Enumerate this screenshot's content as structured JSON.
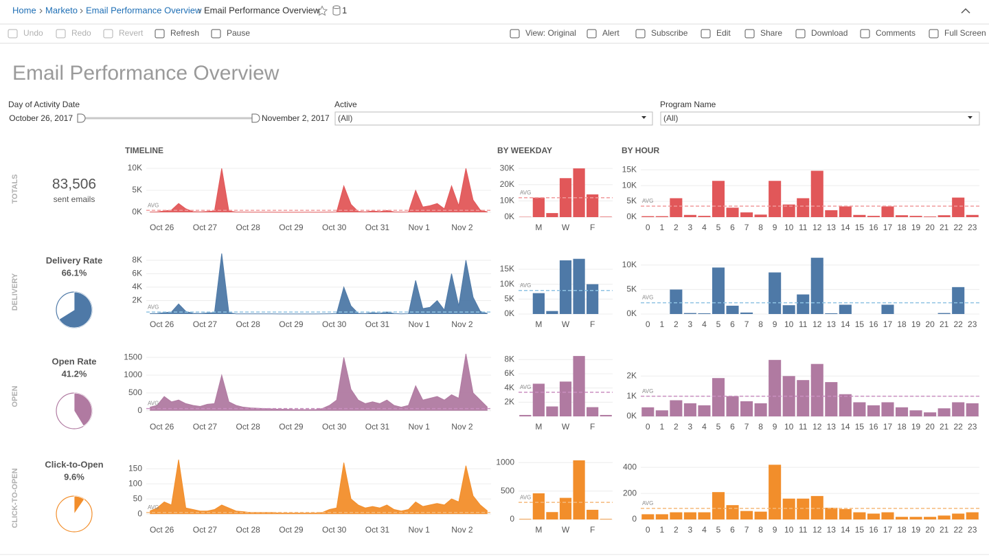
{
  "breadcrumb": [
    "Home",
    "Marketo",
    "Email Performance Overview",
    "Email Performance Overview"
  ],
  "data_sources": 1,
  "toolbar": [
    {
      "label": "Undo",
      "enabled": false
    },
    {
      "label": "Redo",
      "enabled": false
    },
    {
      "label": "Revert",
      "enabled": false
    },
    {
      "label": "Refresh",
      "enabled": true
    },
    {
      "label": "Pause",
      "enabled": true
    },
    {
      "label": "View: Original",
      "enabled": true
    },
    {
      "label": "Alert",
      "enabled": true
    },
    {
      "label": "Subscribe",
      "enabled": true
    },
    {
      "label": "Edit",
      "enabled": true
    },
    {
      "label": "Share",
      "enabled": true
    },
    {
      "label": "Download",
      "enabled": true
    },
    {
      "label": "Comments",
      "enabled": true
    },
    {
      "label": "Full Screen",
      "enabled": true
    }
  ],
  "title": "Email Performance Overview",
  "filters": {
    "date": {
      "label": "Day of Activity Date",
      "start": "October 26, 2017",
      "end": "November 2, 2017"
    },
    "active": {
      "label": "Active",
      "value": "(All)"
    },
    "program": {
      "label": "Program Name",
      "value": "(All)"
    }
  },
  "sections": [
    "TIMELINE",
    "BY WEEKDAY",
    "BY HOUR"
  ],
  "rows": [
    {
      "name": "TOTALS",
      "kpi": "83,506",
      "caption": "sent emails"
    },
    {
      "name": "DELIVERY",
      "metric": "Delivery Rate",
      "value": 66.1,
      "value_label": "66.1%"
    },
    {
      "name": "OPEN",
      "metric": "Open Rate",
      "value": 41.2,
      "value_label": "41.2%"
    },
    {
      "name": "CLICK-TO-OPEN",
      "metric": "Click-to-Open",
      "value": 9.6,
      "value_label": "9.6%"
    }
  ],
  "chart_data": [
    {
      "type": "area",
      "color": "#e15759",
      "grid": true,
      "categories": [
        "Oct 26",
        null,
        null,
        null,
        null,
        null,
        "Oct 27",
        null,
        null,
        null,
        null,
        null,
        "Oct 28",
        null,
        null,
        null,
        null,
        null,
        "Oct 29",
        null,
        null,
        null,
        null,
        null,
        "Oct 30",
        null,
        null,
        null,
        null,
        null,
        "Oct 31",
        null,
        null,
        null,
        null,
        null,
        "Nov 1",
        null,
        null,
        null,
        null,
        null,
        "Nov 2",
        null,
        null,
        null,
        null,
        null
      ],
      "values": [
        80,
        100,
        300,
        500,
        2000,
        800,
        150,
        100,
        200,
        300,
        10000,
        300,
        60,
        50,
        40,
        30,
        40,
        30,
        20,
        20,
        20,
        20,
        30,
        20,
        40,
        60,
        80,
        6000,
        1800,
        200,
        100,
        300,
        150,
        400,
        100,
        50,
        80,
        5000,
        1200,
        1500,
        2000,
        800,
        6000,
        1500,
        10000,
        2800,
        500,
        100
      ],
      "ylim": [
        -1100,
        11100
      ],
      "yticks": [
        {
          "value": 0,
          "label": "0K"
        },
        {
          "value": 5000,
          "label": "5K"
        },
        {
          "value": 10000,
          "label": "10K"
        }
      ],
      "reference_line": {
        "label": "AVG",
        "value": 435,
        "color": "#f09a9b"
      }
    },
    {
      "type": "bar",
      "color": "#e15759",
      "grid": true,
      "categories": [
        null,
        "M",
        null,
        "W",
        null,
        "F",
        null
      ],
      "values": [
        200,
        12000,
        2500,
        24000,
        30000,
        14000,
        300
      ],
      "ylim": [
        0,
        33000
      ],
      "yticks": [
        {
          "value": 0,
          "label": "0K"
        },
        {
          "value": 10000,
          "label": "10K"
        },
        {
          "value": 20000,
          "label": "20K"
        },
        {
          "value": 30000,
          "label": "30K"
        }
      ],
      "reference_line": {
        "label": "AVG",
        "value": 11929,
        "color": "#f09a9b"
      }
    },
    {
      "type": "bar",
      "color": "#e15759",
      "grid": true,
      "categories": [
        "0",
        "1",
        "2",
        "3",
        "4",
        "5",
        "6",
        "7",
        "8",
        "9",
        "10",
        "11",
        "12",
        "13",
        "14",
        "15",
        "16",
        "17",
        "18",
        "19",
        "20",
        "21",
        "22",
        "23"
      ],
      "values": [
        300,
        300,
        6000,
        700,
        400,
        11500,
        3000,
        1500,
        800,
        11500,
        4000,
        6000,
        14700,
        2200,
        3400,
        700,
        400,
        3400,
        600,
        400,
        200,
        600,
        6200,
        700
      ],
      "ylim": [
        0,
        17000
      ],
      "yticks": [
        {
          "value": 0,
          "label": "0K"
        },
        {
          "value": 5000,
          "label": "5K"
        },
        {
          "value": 10000,
          "label": "10K"
        },
        {
          "value": 15000,
          "label": "15K"
        }
      ],
      "reference_line": {
        "label": "AVG",
        "value": 3480,
        "color": "#f09a9b"
      }
    },
    {
      "type": "area",
      "color": "#4e79a7",
      "grid": true,
      "categories": [
        "Oct 26",
        null,
        null,
        null,
        null,
        null,
        "Oct 27",
        null,
        null,
        null,
        null,
        null,
        "Oct 28",
        null,
        null,
        null,
        null,
        null,
        "Oct 29",
        null,
        null,
        null,
        null,
        null,
        "Oct 30",
        null,
        null,
        null,
        null,
        null,
        "Oct 31",
        null,
        null,
        null,
        null,
        null,
        "Nov 1",
        null,
        null,
        null,
        null,
        null,
        "Nov 2",
        null,
        null,
        null,
        null,
        null
      ],
      "values": [
        50,
        80,
        200,
        300,
        1500,
        400,
        100,
        80,
        150,
        200,
        9000,
        200,
        30,
        20,
        20,
        20,
        20,
        20,
        10,
        10,
        10,
        10,
        10,
        10,
        20,
        40,
        60,
        4000,
        1200,
        100,
        60,
        200,
        100,
        300,
        60,
        30,
        50,
        5000,
        800,
        1000,
        2000,
        600,
        6000,
        1200,
        8000,
        2500,
        400,
        80
      ],
      "ylim": [
        0,
        9100
      ],
      "yticks": [
        {
          "value": 2000,
          "label": "2K"
        },
        {
          "value": 4000,
          "label": "4K"
        },
        {
          "value": 6000,
          "label": "6K"
        },
        {
          "value": 8000,
          "label": "8K"
        }
      ],
      "reference_line": {
        "label": "AVG",
        "value": 290,
        "color": "#8fc3e3"
      }
    },
    {
      "type": "bar",
      "color": "#4e79a7",
      "grid": true,
      "categories": [
        null,
        "M",
        null,
        "W",
        null,
        "F",
        null
      ],
      "values": [
        0,
        7000,
        1000,
        18000,
        18500,
        10000,
        0
      ],
      "ylim": [
        0,
        20500
      ],
      "yticks": [
        {
          "value": 0,
          "label": "0K"
        },
        {
          "value": 5000,
          "label": "5K"
        },
        {
          "value": 10000,
          "label": "10K"
        },
        {
          "value": 15000,
          "label": "15K"
        }
      ],
      "reference_line": {
        "label": "AVG",
        "value": 7900,
        "color": "#8fc3e3"
      }
    },
    {
      "type": "bar",
      "color": "#4e79a7",
      "grid": true,
      "categories": [
        "0",
        "1",
        "2",
        "3",
        "4",
        "5",
        "6",
        "7",
        "8",
        "9",
        "10",
        "11",
        "12",
        "13",
        "14",
        "15",
        "16",
        "17",
        "18",
        "19",
        "20",
        "21",
        "22",
        "23"
      ],
      "values": [
        0,
        0,
        5000,
        200,
        150,
        9500,
        1700,
        300,
        0,
        8500,
        1800,
        4000,
        11500,
        150,
        1900,
        0,
        0,
        1900,
        0,
        0,
        0,
        200,
        5500,
        0
      ],
      "ylim": [
        0,
        12500
      ],
      "yticks": [
        {
          "value": 0,
          "label": "0K"
        },
        {
          "value": 5000,
          "label": "5K"
        },
        {
          "value": 10000,
          "label": "10K"
        }
      ],
      "reference_line": {
        "label": "AVG",
        "value": 2300,
        "color": "#8fc3e3"
      }
    },
    {
      "type": "area",
      "color": "#b07aa1",
      "grid": true,
      "categories": [
        "Oct 26",
        null,
        null,
        null,
        null,
        null,
        "Oct 27",
        null,
        null,
        null,
        null,
        null,
        "Oct 28",
        null,
        null,
        null,
        null,
        null,
        "Oct 29",
        null,
        null,
        null,
        null,
        null,
        "Oct 30",
        null,
        null,
        null,
        null,
        null,
        "Oct 31",
        null,
        null,
        null,
        null,
        null,
        "Nov 1",
        null,
        null,
        null,
        null,
        null,
        "Nov 2",
        null,
        null,
        null,
        null,
        null
      ],
      "values": [
        100,
        150,
        400,
        250,
        300,
        200,
        150,
        120,
        180,
        200,
        1000,
        250,
        150,
        100,
        80,
        70,
        60,
        50,
        40,
        40,
        30,
        30,
        30,
        30,
        60,
        150,
        300,
        1500,
        600,
        300,
        200,
        250,
        200,
        300,
        150,
        100,
        150,
        700,
        300,
        350,
        400,
        300,
        450,
        350,
        1600,
        500,
        300,
        100
      ],
      "ylim": [
        -160,
        1600
      ],
      "yticks": [
        0,
        500,
        1000,
        1500
      ],
      "reference_line": {
        "label": "AVG",
        "value": 60,
        "color": "#c98fc0"
      }
    },
    {
      "type": "bar",
      "color": "#b07aa1",
      "grid": true,
      "categories": [
        null,
        "M",
        null,
        "W",
        null,
        "F",
        null
      ],
      "values": [
        200,
        4600,
        1400,
        4900,
        8500,
        1300,
        200
      ],
      "ylim": [
        0,
        8800
      ],
      "yticks": [
        {
          "value": 2000,
          "label": "2K"
        },
        {
          "value": 4000,
          "label": "4K"
        },
        {
          "value": 6000,
          "label": "6K"
        },
        {
          "value": 8000,
          "label": "8K"
        }
      ],
      "reference_line": {
        "label": "AVG",
        "value": 3400,
        "color": "#c98fc0"
      }
    },
    {
      "type": "bar",
      "color": "#b07aa1",
      "grid": true,
      "categories": [
        "0",
        "1",
        "2",
        "3",
        "4",
        "5",
        "6",
        "7",
        "8",
        "9",
        "10",
        "11",
        "12",
        "13",
        "14",
        "15",
        "16",
        "17",
        "18",
        "19",
        "20",
        "21",
        "22",
        "23"
      ],
      "values": [
        450,
        300,
        800,
        650,
        550,
        1900,
        1000,
        750,
        650,
        2800,
        2000,
        1800,
        2600,
        1700,
        1100,
        700,
        550,
        700,
        450,
        300,
        200,
        400,
        700,
        650
      ],
      "ylim": [
        0,
        3100
      ],
      "yticks": [
        {
          "value": 0,
          "label": "0K"
        },
        {
          "value": 1000,
          "label": "1K"
        },
        {
          "value": 2000,
          "label": "2K"
        }
      ],
      "reference_line": {
        "label": "AVG",
        "value": 1000,
        "color": "#c98fc0"
      }
    },
    {
      "type": "area",
      "color": "#f28e2b",
      "grid": true,
      "categories": [
        "Oct 26",
        null,
        null,
        null,
        null,
        null,
        "Oct 27",
        null,
        null,
        null,
        null,
        null,
        "Oct 28",
        null,
        null,
        null,
        null,
        null,
        "Oct 29",
        null,
        null,
        null,
        null,
        null,
        "Oct 30",
        null,
        null,
        null,
        null,
        null,
        "Oct 31",
        null,
        null,
        null,
        null,
        null,
        "Nov 1",
        null,
        null,
        null,
        null,
        null,
        "Nov 2",
        null,
        null,
        null,
        null,
        null
      ],
      "values": [
        10,
        20,
        40,
        30,
        180,
        20,
        15,
        10,
        10,
        15,
        30,
        20,
        10,
        8,
        5,
        5,
        5,
        5,
        3,
        3,
        3,
        3,
        3,
        3,
        5,
        15,
        20,
        170,
        50,
        30,
        20,
        25,
        20,
        30,
        15,
        10,
        15,
        40,
        25,
        30,
        35,
        30,
        50,
        40,
        160,
        60,
        30,
        10
      ],
      "ylim": [
        -18,
        189
      ],
      "yticks": [
        0,
        50,
        100,
        150
      ],
      "reference_line": {
        "label": "AVG",
        "value": 5,
        "color": "#f5b97a"
      }
    },
    {
      "type": "bar",
      "color": "#f28e2b",
      "grid": true,
      "categories": [
        null,
        "M",
        null,
        "W",
        null,
        "F",
        null
      ],
      "values": [
        10,
        460,
        130,
        380,
        1040,
        170,
        10
      ],
      "ylim": [
        0,
        1100
      ],
      "yticks": [
        0,
        500,
        1000
      ],
      "reference_line": {
        "label": "AVG",
        "value": 300,
        "color": "#f5b97a"
      }
    },
    {
      "type": "bar",
      "color": "#f28e2b",
      "grid": true,
      "categories": [
        "0",
        "1",
        "2",
        "3",
        "4",
        "5",
        "6",
        "7",
        "8",
        "9",
        "10",
        "11",
        "12",
        "13",
        "14",
        "15",
        "16",
        "17",
        "18",
        "19",
        "20",
        "21",
        "22",
        "23"
      ],
      "values": [
        40,
        40,
        55,
        55,
        55,
        210,
        110,
        65,
        60,
        420,
        160,
        160,
        180,
        90,
        80,
        55,
        45,
        55,
        20,
        20,
        20,
        30,
        45,
        55
      ],
      "ylim": [
        0,
        480
      ],
      "yticks": [
        0,
        200,
        400
      ],
      "reference_line": {
        "label": "AVG",
        "value": 85,
        "color": "#f5b97a"
      }
    }
  ]
}
